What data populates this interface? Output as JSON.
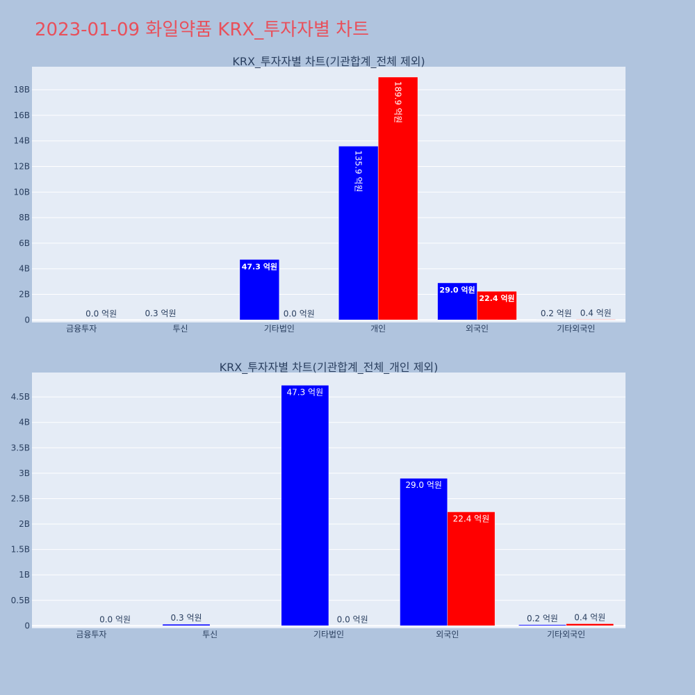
{
  "page_title": "2023-01-09 화일약품 KRX_투자자별 차트",
  "colors": {
    "buy": "#0000ff",
    "sell": "#ff0000",
    "plot_bg": "#e5ecf6",
    "page_bg": "#b0c4de",
    "title": "#e8505b"
  },
  "chart_data": [
    {
      "type": "bar",
      "title": "KRX_투자자별 차트(기관합계_전체 제외)",
      "categories": [
        "금융투자",
        "투신",
        "기타법인",
        "개인",
        "외국인",
        "기타외국인"
      ],
      "series": [
        {
          "color": "#0000ff",
          "values": [
            0.0,
            0.03,
            4.73,
            13.59,
            2.9,
            0.02
          ],
          "labels": [
            "",
            "0.3 억원",
            "47.3 억원",
            "135.9 억원",
            "29.0 억원",
            "0.2 억원"
          ]
        },
        {
          "color": "#ff0000",
          "values": [
            0.0,
            0.0,
            0.0,
            18.99,
            2.24,
            0.04
          ],
          "labels": [
            "0.0 억원",
            "",
            "0.0 억원",
            "189.9 억원",
            "22.4 억원",
            "0.4 억원"
          ]
        }
      ],
      "yticks": [
        0,
        2,
        4,
        6,
        8,
        10,
        12,
        14,
        16,
        18
      ],
      "ytick_labels": [
        "0",
        "2B",
        "4B",
        "6B",
        "8B",
        "10B",
        "12B",
        "14B",
        "16B",
        "18B"
      ],
      "ylim": [
        -0.2,
        19.8
      ],
      "grid": true
    },
    {
      "type": "bar",
      "title": "KRX_투자자별 차트(기관합계_전체_개인 제외)",
      "categories": [
        "금융투자",
        "투신",
        "기타법인",
        "외국인",
        "기타외국인"
      ],
      "series": [
        {
          "color": "#0000ff",
          "values": [
            0.0,
            0.03,
            4.73,
            2.9,
            0.02
          ],
          "labels": [
            "",
            "0.3 억원",
            "47.3 억원",
            "29.0 억원",
            "0.2 억원"
          ]
        },
        {
          "color": "#ff0000",
          "values": [
            0.0,
            0.0,
            0.0,
            2.24,
            0.04
          ],
          "labels": [
            "0.0 억원",
            "",
            "0.0 억원",
            "22.4 억원",
            "0.4 억원"
          ]
        }
      ],
      "yticks": [
        0,
        0.5,
        1,
        1.5,
        2,
        2.5,
        3,
        3.5,
        4,
        4.5
      ],
      "ytick_labels": [
        "0",
        "0.5B",
        "1B",
        "1.5B",
        "2B",
        "2.5B",
        "3B",
        "3.5B",
        "4B",
        "4.5B"
      ],
      "ylim": [
        -0.05,
        4.98
      ],
      "grid": true
    }
  ]
}
